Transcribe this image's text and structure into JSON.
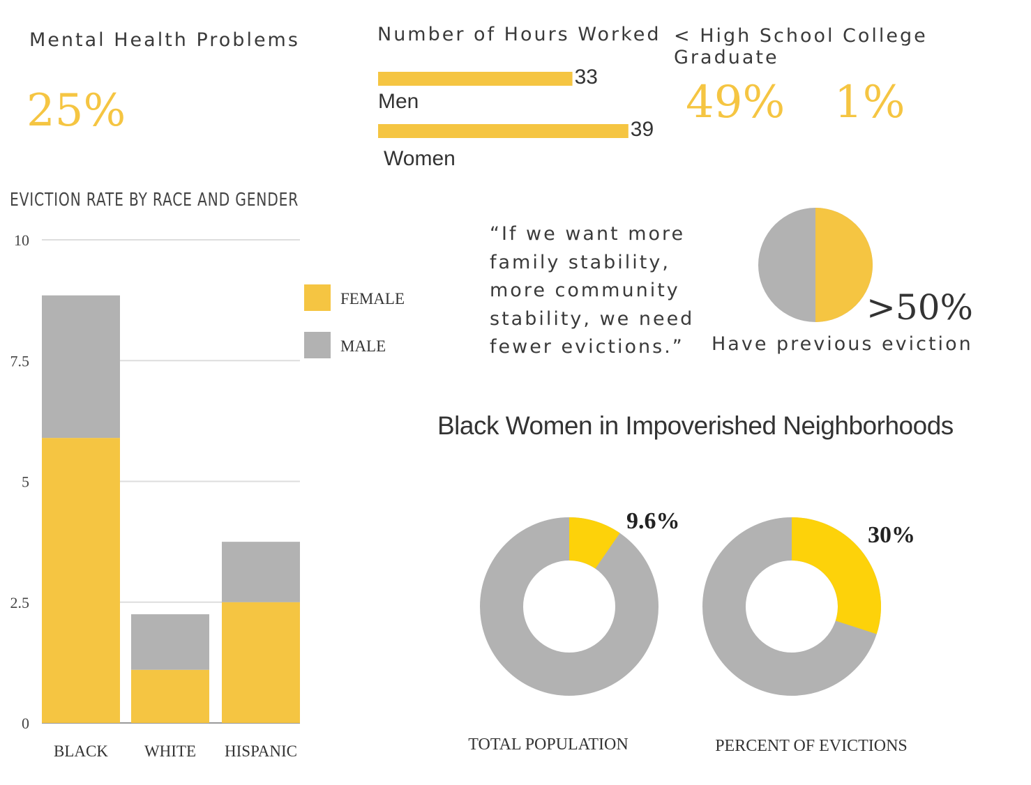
{
  "colors": {
    "gold": "#f5c542",
    "gray": "#b2b2b2",
    "bright_gold": "#fdd20a",
    "grid": "#dddddd"
  },
  "mental_health": {
    "title": "Mental Health Problems",
    "value": "25%"
  },
  "hours_worked": {
    "title": "Number of Hours Worked",
    "bars": [
      {
        "label": "Men",
        "value": 33
      },
      {
        "label": "Women",
        "value": 39
      }
    ]
  },
  "education": {
    "title": "< High School College Graduate",
    "values": [
      "49%",
      "1%"
    ]
  },
  "quote": {
    "lines": [
      "“If we want more",
      "family stability,",
      "more community",
      "stability, we need",
      "fewer evictions.”"
    ]
  },
  "previous_eviction": {
    "value": ">50%",
    "label": "Have previous eviction",
    "fraction": 0.5
  },
  "neighborhoods": {
    "title": "Black Women in Impoverished Neighborhoods",
    "donuts": [
      {
        "label": "TOTAL POPULATION",
        "value_label": "9.6%",
        "value": 9.6
      },
      {
        "label": "PERCENT OF EVICTIONS",
        "value_label": "30%",
        "value": 30
      }
    ]
  },
  "chart_data": {
    "type": "bar",
    "title": "EVICTION RATE BY RACE AND GENDER",
    "stacked": true,
    "categories": [
      "BLACK",
      "WHITE",
      "HISPANIC"
    ],
    "series": [
      {
        "name": "FEMALE",
        "values": [
          5.9,
          1.1,
          2.5
        ]
      },
      {
        "name": "MALE",
        "values": [
          2.95,
          1.15,
          1.25
        ]
      }
    ],
    "ylim": [
      0,
      10
    ],
    "yticks": [
      "0",
      "2.5",
      "5",
      "7.5",
      "10"
    ],
    "ytick_values": [
      0,
      2.5,
      5,
      7.5,
      10
    ],
    "grid": true,
    "legend_position": "right"
  }
}
